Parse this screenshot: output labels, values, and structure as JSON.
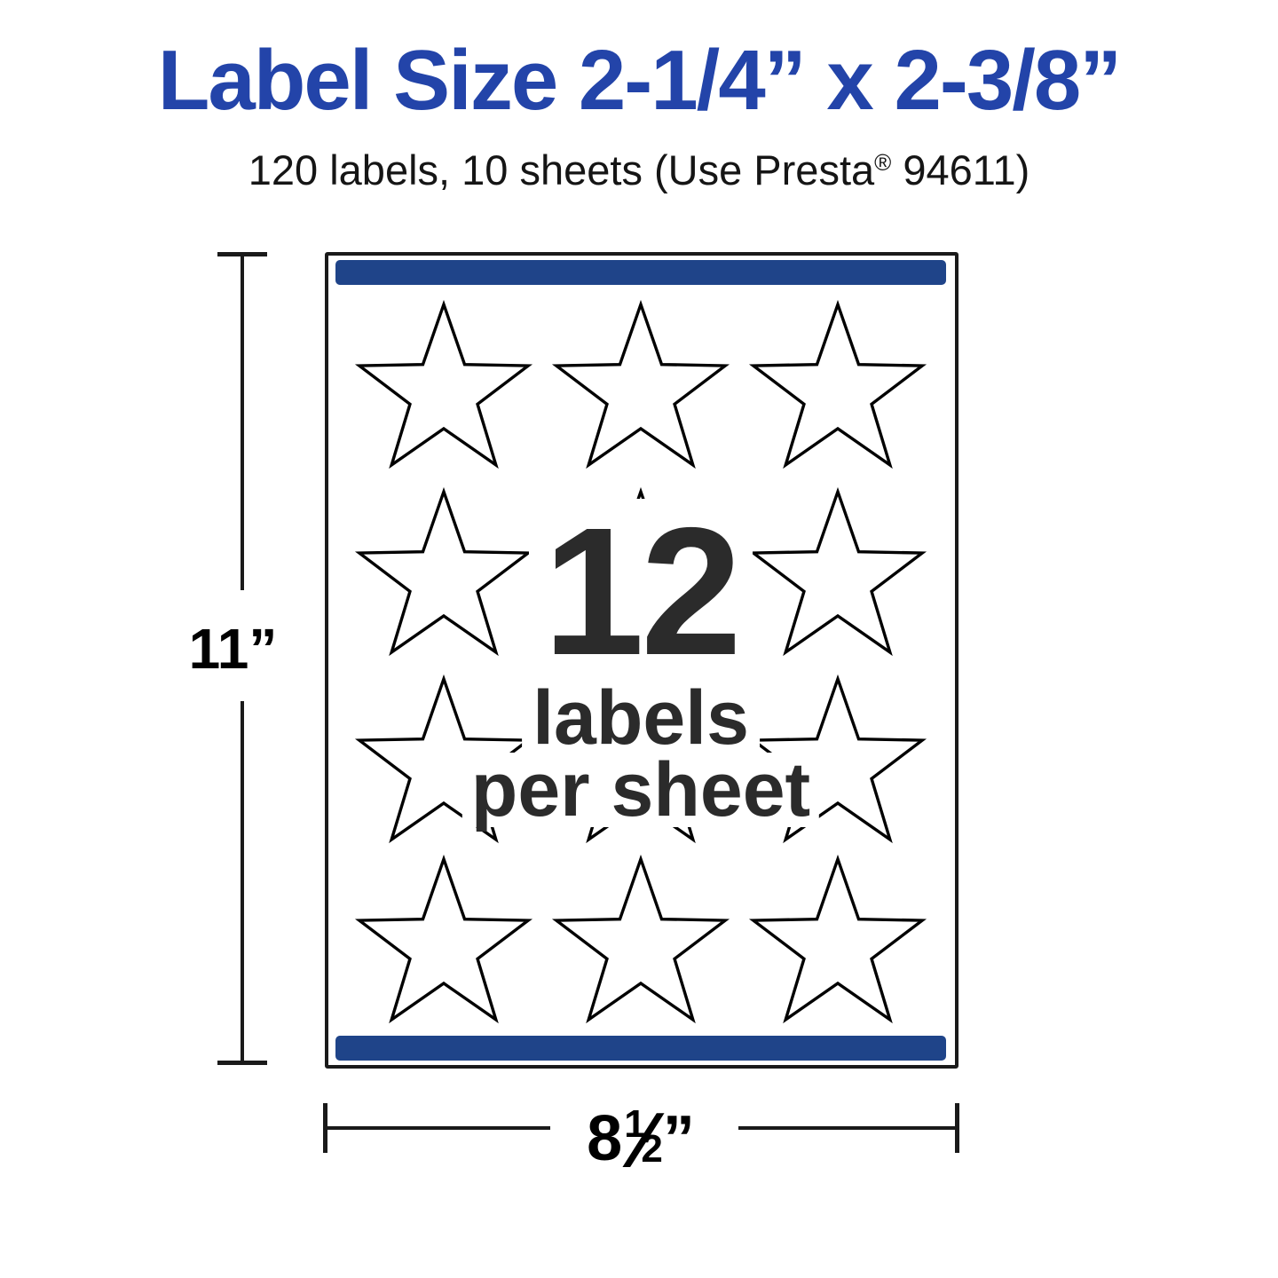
{
  "header": {
    "title": "Label Size 2-1/4” x 2-3/8”",
    "subtitle_before": "120 labels, 10 sheets (Use Presta",
    "subtitle_reg": "®",
    "subtitle_after": " 94611)"
  },
  "sheet_diagram": {
    "count": "12",
    "count_caption_line1": "labels",
    "count_caption_line2": "per sheet",
    "rows": 4,
    "cols": 3,
    "total_labels_shown": 12,
    "label_shape_icon": "star-outline-icon"
  },
  "dimensions": {
    "height": "11”",
    "width_whole": "8",
    "width_num": "1",
    "width_slash": "⁄",
    "width_den": "2",
    "width_unit": "”"
  },
  "colors": {
    "title_blue": "#2344a9",
    "bar_blue": "#1f4489",
    "dark_text": "#2b2b2b",
    "line_black": "#1a1a1a"
  }
}
